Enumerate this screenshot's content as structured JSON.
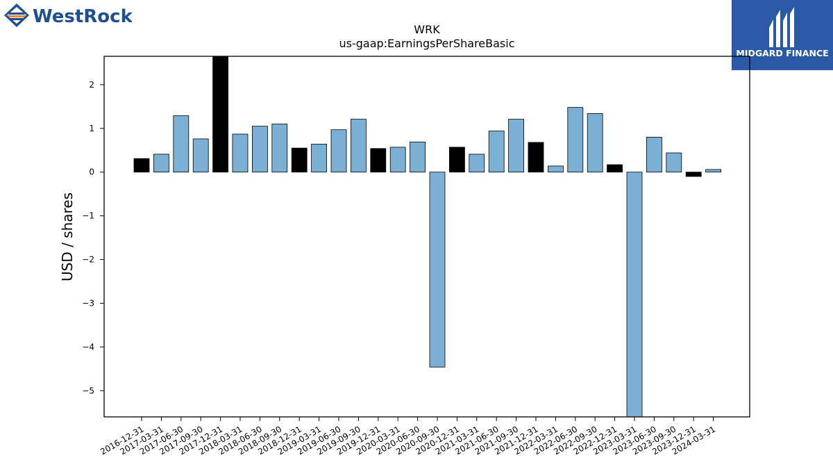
{
  "logos": {
    "left_text": "WestRock",
    "right_text": "MIDGARD FINANCE"
  },
  "colors": {
    "bar_light": "#7bafd4",
    "bar_dark": "#000000",
    "westrock_blue": "#1d4f91",
    "westrock_orange": "#f08a24",
    "midgard_bg": "#2a5aa6"
  },
  "chart_data": {
    "type": "bar",
    "title": "WRK",
    "subtitle": "us-gaap:EarningsPerShareBasic",
    "ylabel": "USD / shares",
    "xlabel": "",
    "ylim": [
      -5.6,
      2.65
    ],
    "yticks": [
      2,
      1,
      0,
      -1,
      -2,
      -3,
      -4,
      -5
    ],
    "ytick_labels": [
      "2",
      "1",
      "0",
      "−1",
      "−2",
      "−3",
      "−4",
      "−5"
    ],
    "grid": false,
    "categories": [
      "2016-12-31",
      "2017-03-31",
      "2017-06-30",
      "2017-09-30",
      "2017-12-31",
      "2018-03-31",
      "2018-06-30",
      "2018-09-30",
      "2018-12-31",
      "2019-03-31",
      "2019-06-30",
      "2019-09-30",
      "2019-12-31",
      "2020-03-31",
      "2020-06-30",
      "2020-09-30",
      "2020-12-31",
      "2021-03-31",
      "2021-06-30",
      "2021-09-30",
      "2021-12-31",
      "2022-03-31",
      "2022-06-30",
      "2022-09-30",
      "2022-12-31",
      "2023-03-31",
      "2023-06-30",
      "2023-09-30",
      "2023-12-31",
      "2024-03-31"
    ],
    "values": [
      0.31,
      0.41,
      1.29,
      0.76,
      2.7,
      0.87,
      1.05,
      1.1,
      0.55,
      0.64,
      0.97,
      1.21,
      0.54,
      0.57,
      0.69,
      -4.46,
      0.57,
      0.41,
      0.94,
      1.21,
      0.68,
      0.14,
      1.48,
      1.34,
      0.17,
      -5.8,
      0.8,
      0.44,
      -0.1,
      0.06
    ],
    "highlight": [
      true,
      false,
      false,
      false,
      true,
      false,
      false,
      false,
      true,
      false,
      false,
      false,
      true,
      false,
      false,
      false,
      true,
      false,
      false,
      false,
      true,
      false,
      false,
      false,
      true,
      false,
      false,
      false,
      true,
      false
    ]
  }
}
